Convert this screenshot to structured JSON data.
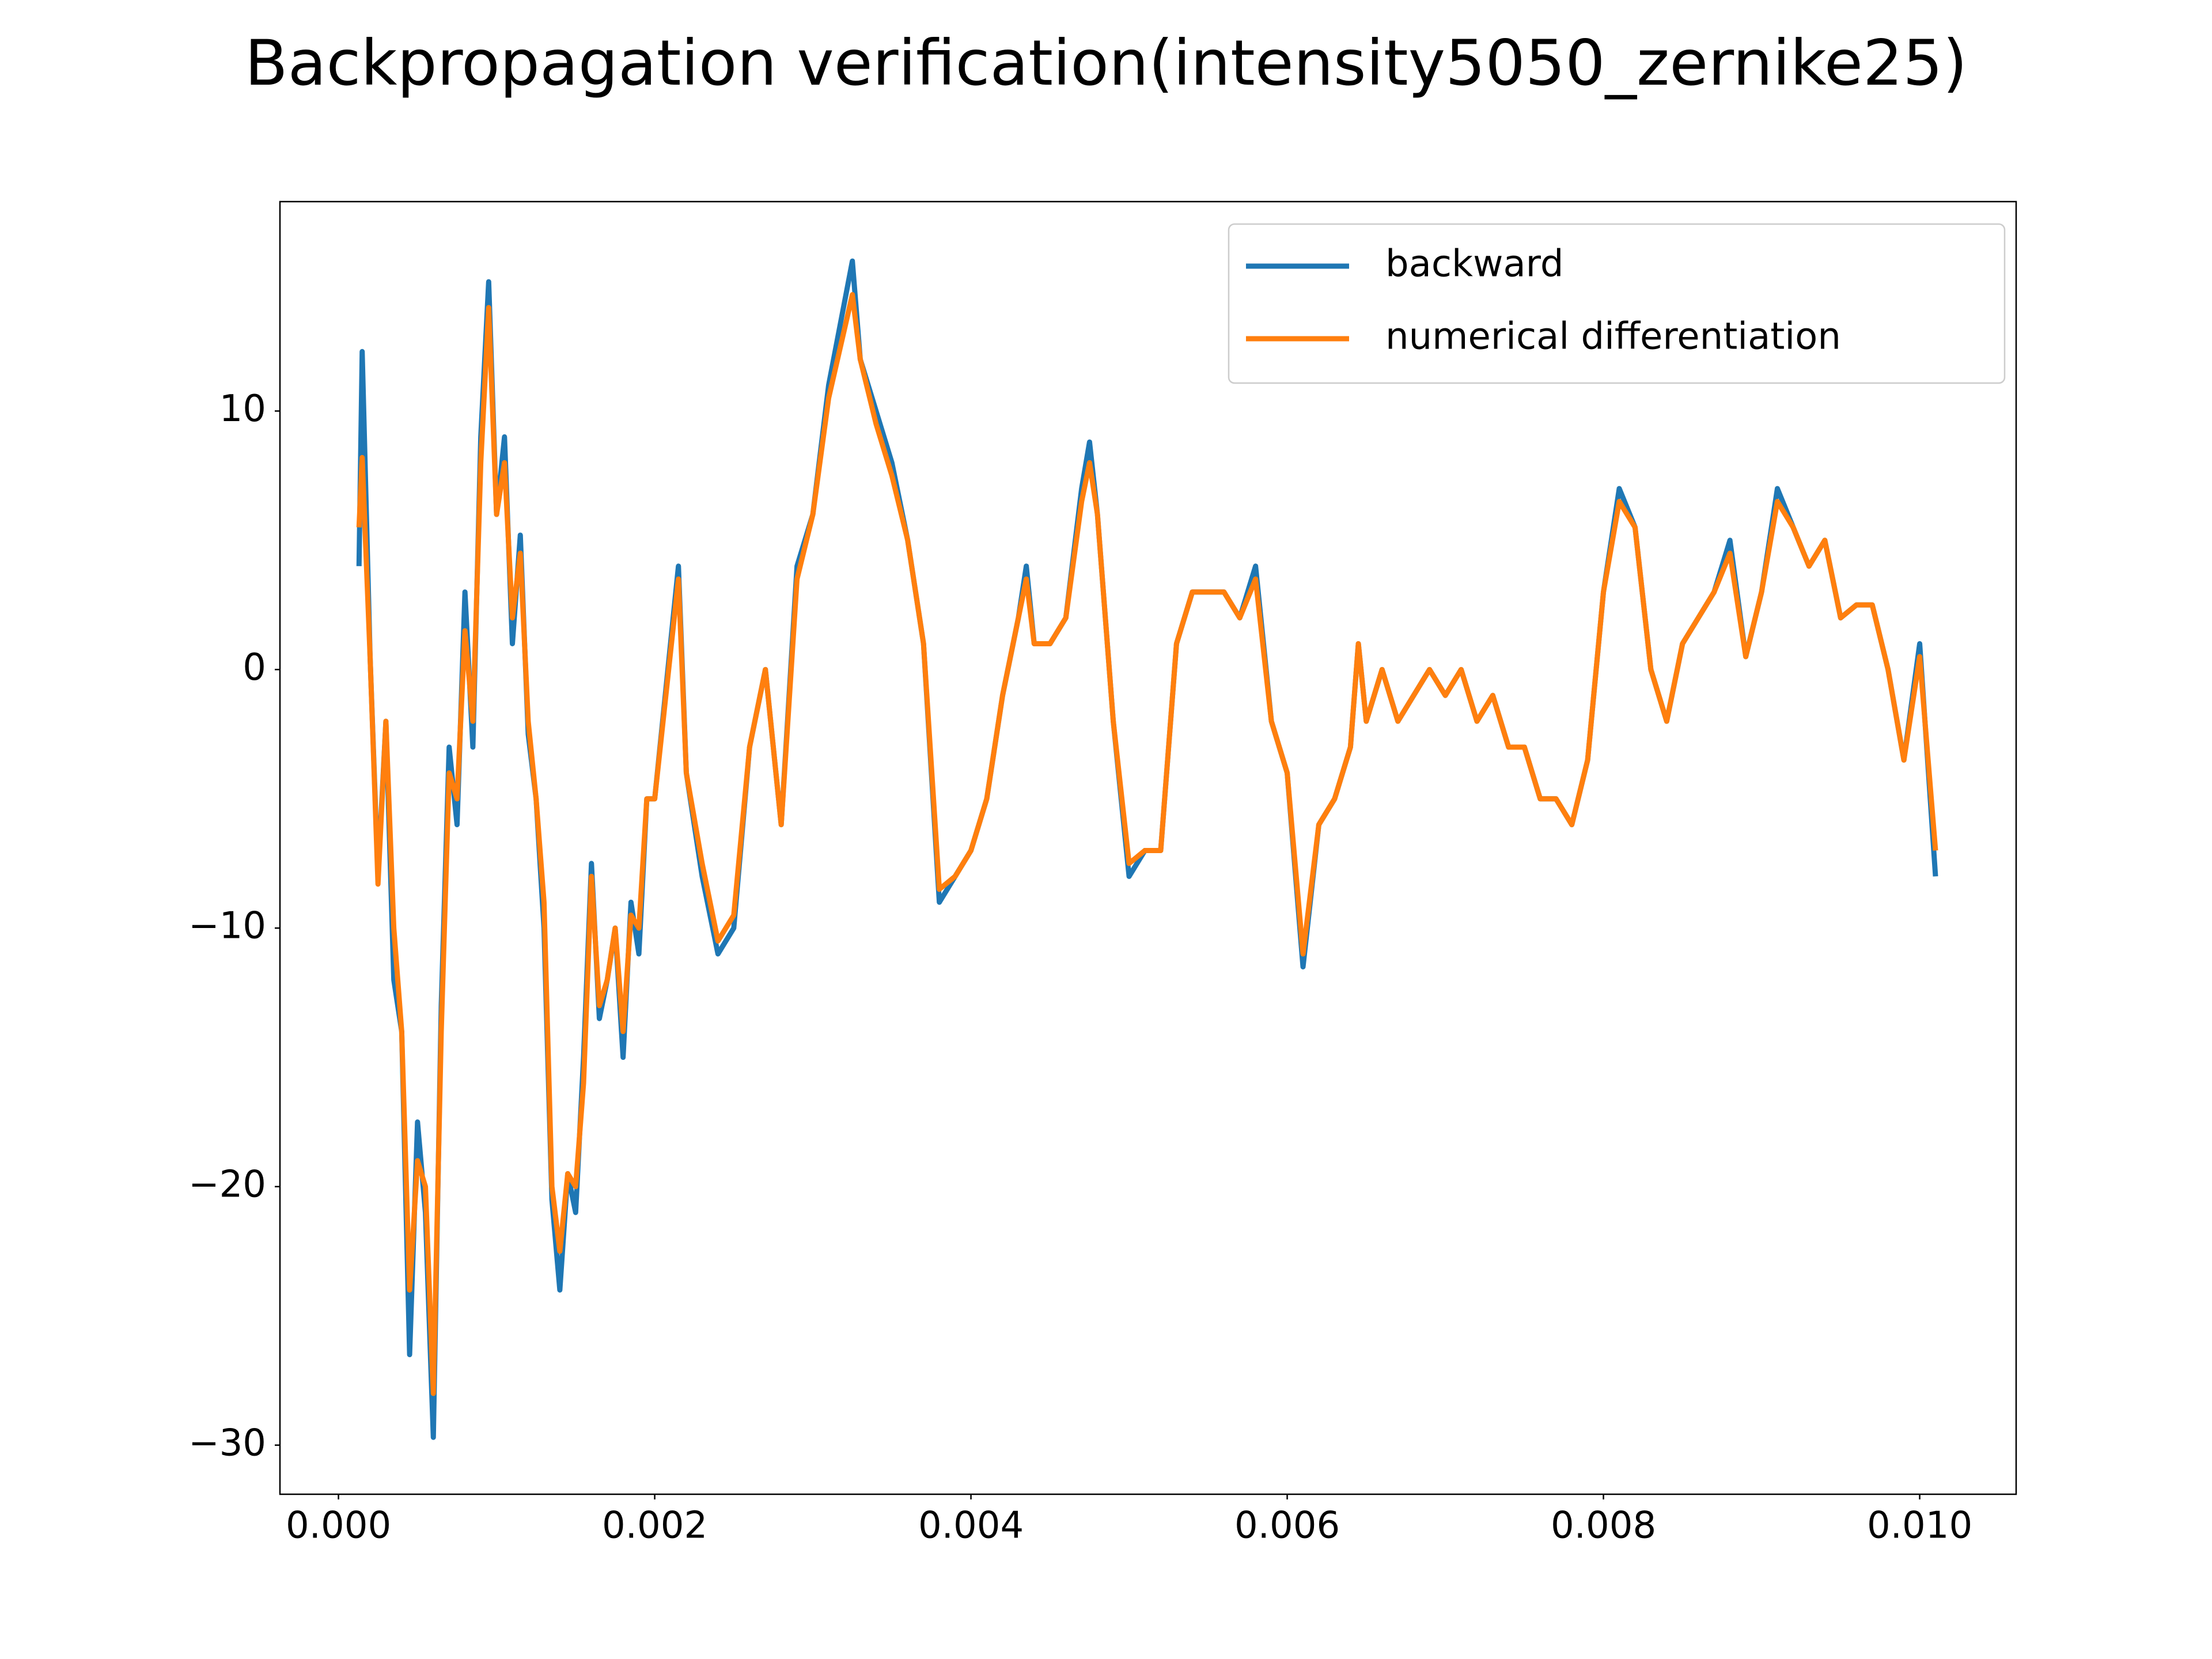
{
  "chart_data": {
    "type": "line",
    "title": "Backpropagation verification(intensity5050_zernike25)",
    "x": [
      0.00013,
      0.00015,
      0.0002,
      0.00025,
      0.0003,
      0.00035,
      0.0004,
      0.00045,
      0.0005,
      0.00055,
      0.0006,
      0.00065,
      0.0007,
      0.00075,
      0.0008,
      0.00085,
      0.0009,
      0.00095,
      0.001,
      0.00105,
      0.0011,
      0.00115,
      0.0012,
      0.00125,
      0.0013,
      0.00135,
      0.0014,
      0.00145,
      0.0015,
      0.00155,
      0.0016,
      0.00165,
      0.0017,
      0.00175,
      0.0018,
      0.00185,
      0.0019,
      0.00195,
      0.002,
      0.00215,
      0.0022,
      0.0023,
      0.0024,
      0.0025,
      0.0026,
      0.0027,
      0.0028,
      0.0029,
      0.003,
      0.0031,
      0.00325,
      0.0033,
      0.0034,
      0.0035,
      0.0036,
      0.0037,
      0.0038,
      0.0039,
      0.004,
      0.0041,
      0.0042,
      0.0043,
      0.00435,
      0.0044,
      0.0045,
      0.0046,
      0.0047,
      0.00475,
      0.0048,
      0.0049,
      0.005,
      0.0051,
      0.0052,
      0.0053,
      0.0054,
      0.0055,
      0.0056,
      0.0057,
      0.0058,
      0.0059,
      0.006,
      0.0061,
      0.0062,
      0.0063,
      0.0064,
      0.00645,
      0.0065,
      0.0066,
      0.0067,
      0.0068,
      0.0069,
      0.007,
      0.0071,
      0.0072,
      0.0073,
      0.0074,
      0.0075,
      0.0076,
      0.0077,
      0.0078,
      0.0079,
      0.008,
      0.0081,
      0.0082,
      0.0083,
      0.0084,
      0.0085,
      0.0086,
      0.0087,
      0.0088,
      0.0089,
      0.009,
      0.0091,
      0.0092,
      0.0093,
      0.0094,
      0.0095,
      0.0096,
      0.0097,
      0.0098,
      0.0099,
      0.01,
      0.0101
    ],
    "series": [
      {
        "name": "backward",
        "color": "#1f77b4",
        "values": [
          4,
          12.3,
          0.5,
          -8,
          -2,
          -12,
          -14,
          -26.5,
          -17.5,
          -21,
          -29.7,
          -13,
          -3,
          -6,
          3,
          -3,
          9,
          15,
          6,
          9,
          1,
          5.2,
          -2.5,
          -5,
          -10,
          -20.5,
          -24,
          -19.5,
          -21,
          -15,
          -7.5,
          -13.5,
          -12,
          -10,
          -15,
          -9,
          -11,
          -5,
          -5,
          4,
          -4,
          -8,
          -11,
          -10,
          -3,
          0,
          -6,
          4,
          6,
          11,
          15.8,
          12,
          10,
          8,
          5,
          1,
          -9,
          -8,
          -7,
          -5,
          -1,
          2,
          4,
          1,
          1,
          2,
          7,
          8.8,
          6,
          -2,
          -8,
          -7,
          -7,
          1,
          3,
          3,
          3,
          2,
          4,
          -2,
          -4,
          -11.5,
          -6,
          -5,
          -3,
          1,
          -2,
          0,
          -2,
          -1,
          0,
          -1,
          0,
          -2,
          -1,
          -3,
          -3,
          -5,
          -5,
          -6,
          -3.5,
          3,
          7,
          5.5,
          0,
          -2,
          1,
          2,
          3,
          5,
          0.5,
          3,
          7,
          5.5,
          4,
          5,
          2,
          2.5,
          2.5,
          0,
          -3.5,
          1,
          -8
        ]
      },
      {
        "name": "numerical differentiation",
        "color": "#ff7f0e",
        "values": [
          5.5,
          8.2,
          0.5,
          -8.3,
          -2,
          -10,
          -14,
          -24,
          -19,
          -20,
          -28,
          -14,
          -4,
          -5,
          1.5,
          -2,
          8,
          14,
          6,
          8,
          2,
          4.5,
          -2,
          -5,
          -9,
          -20,
          -22.5,
          -19.5,
          -20,
          -16,
          -8,
          -13,
          -12,
          -10,
          -14,
          -9.5,
          -10,
          -5,
          -5,
          3.5,
          -4,
          -7.5,
          -10.5,
          -9.5,
          -3,
          0,
          -6,
          3.5,
          6,
          10.5,
          14.5,
          12,
          9.5,
          7.5,
          5,
          1,
          -8.5,
          -8,
          -7,
          -5,
          -1,
          2,
          3.5,
          1,
          1,
          2,
          6.5,
          8,
          6,
          -2,
          -7.5,
          -7,
          -7,
          1,
          3,
          3,
          3,
          2,
          3.5,
          -2,
          -4,
          -11,
          -6,
          -5,
          -3,
          1,
          -2,
          0,
          -2,
          -1,
          0,
          -1,
          0,
          -2,
          -1,
          -3,
          -3,
          -5,
          -5,
          -6,
          -3.5,
          3,
          6.5,
          5.5,
          0,
          -2,
          1,
          2,
          3,
          4.5,
          0.5,
          3,
          6.5,
          5.5,
          4,
          5,
          2,
          2.5,
          2.5,
          0,
          -3.5,
          0.5,
          -7
        ]
      }
    ],
    "xlim": [
      -0.00037,
      0.01061
    ],
    "ylim": [
      -31.9,
      18.1
    ],
    "xticks": [
      {
        "value": 0,
        "label": "0.000"
      },
      {
        "value": 0.002,
        "label": "0.002"
      },
      {
        "value": 0.004,
        "label": "0.004"
      },
      {
        "value": 0.006,
        "label": "0.006"
      },
      {
        "value": 0.008,
        "label": "0.008"
      },
      {
        "value": 0.01,
        "label": "0.010"
      }
    ],
    "yticks": [
      {
        "value": -30,
        "label": "−30"
      },
      {
        "value": -20,
        "label": "−20"
      },
      {
        "value": -10,
        "label": "−10"
      },
      0,
      10
    ],
    "grid": false,
    "legend": "upper right"
  }
}
